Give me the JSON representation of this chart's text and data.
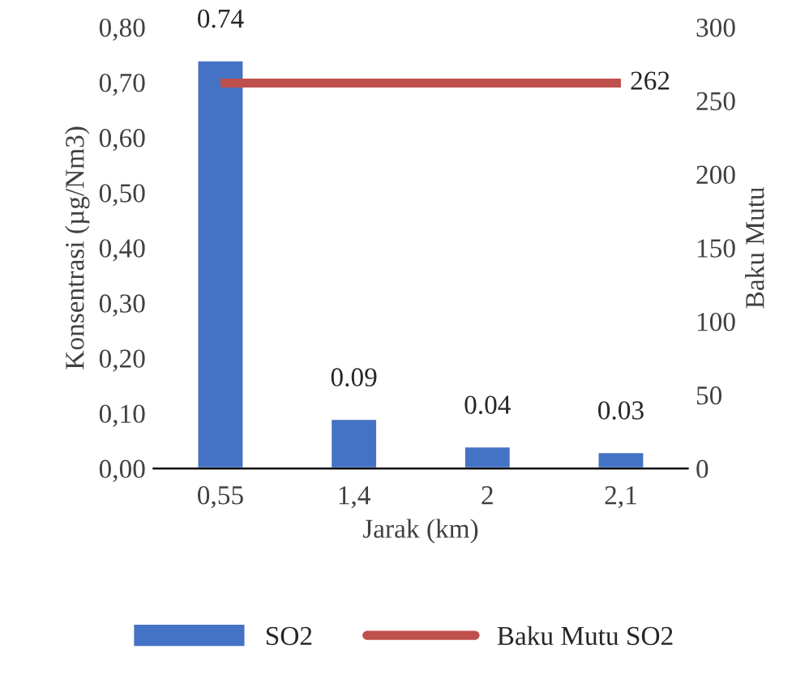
{
  "chart_data": {
    "type": "bar",
    "xlabel": "Jarak (km)",
    "ylabel": "Konsentrasi (µg/Nm3)",
    "y2label": "Baku Mutu",
    "categories": [
      "0,55",
      "1,4",
      "2",
      "2,1"
    ],
    "series": [
      {
        "name": "SO2",
        "color": "#4472c4",
        "values": [
          0.74,
          0.09,
          0.04,
          0.03
        ],
        "value_labels": [
          "0.74",
          "0.09",
          "0.04",
          "0.03"
        ]
      },
      {
        "name": "Baku Mutu SO2",
        "type": "line",
        "axis": "y2",
        "color": "#c0504d",
        "values": [
          262,
          262,
          262,
          262
        ],
        "value_labels": [
          null,
          null,
          null,
          "262"
        ]
      }
    ],
    "ylim": [
      0,
      0.8
    ],
    "yticks": [
      {
        "value": 0,
        "label": "0,00"
      },
      {
        "value": 0.1,
        "label": "0,10"
      },
      {
        "value": 0.2,
        "label": "0,20"
      },
      {
        "value": 0.3,
        "label": "0,30"
      },
      {
        "value": 0.4,
        "label": "0,40"
      },
      {
        "value": 0.5,
        "label": "0,50"
      },
      {
        "value": 0.6,
        "label": "0,60"
      },
      {
        "value": 0.7,
        "label": "0,70"
      },
      {
        "value": 0.8,
        "label": "0,80"
      }
    ],
    "y2lim": [
      0,
      300
    ],
    "y2ticks": [
      0,
      50,
      100,
      150,
      200,
      250,
      300
    ],
    "grid": false,
    "legend": "bottom",
    "marker": "none"
  }
}
